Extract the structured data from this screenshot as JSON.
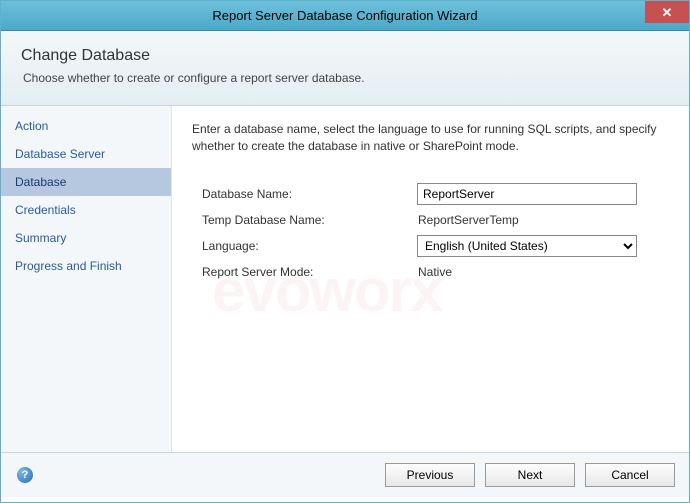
{
  "window": {
    "title": "Report Server Database Configuration Wizard",
    "close_glyph": "✕"
  },
  "header": {
    "title": "Change Database",
    "subtitle": "Choose whether to create or configure a report server database."
  },
  "sidebar": {
    "items": [
      {
        "label": "Action",
        "active": false
      },
      {
        "label": "Database Server",
        "active": false
      },
      {
        "label": "Database",
        "active": true
      },
      {
        "label": "Credentials",
        "active": false
      },
      {
        "label": "Summary",
        "active": false
      },
      {
        "label": "Progress and Finish",
        "active": false
      }
    ]
  },
  "main": {
    "instruction": "Enter a database name, select the language to use for running SQL scripts, and specify whether to create the database in native or SharePoint mode.",
    "fields": {
      "db_name_label": "Database Name:",
      "db_name_value": "ReportServer",
      "temp_db_label": "Temp Database Name:",
      "temp_db_value": "ReportServerTemp",
      "language_label": "Language:",
      "language_value": "English (United States)",
      "mode_label": "Report Server Mode:",
      "mode_value": "Native"
    }
  },
  "footer": {
    "help_glyph": "?",
    "previous": "Previous",
    "next": "Next",
    "cancel": "Cancel"
  },
  "colors": {
    "titlebar_bg": "#5bb3d0",
    "close_bg": "#c75050",
    "sidebar_active_bg": "#b6c8e0",
    "link_color": "#2a5a9c"
  }
}
